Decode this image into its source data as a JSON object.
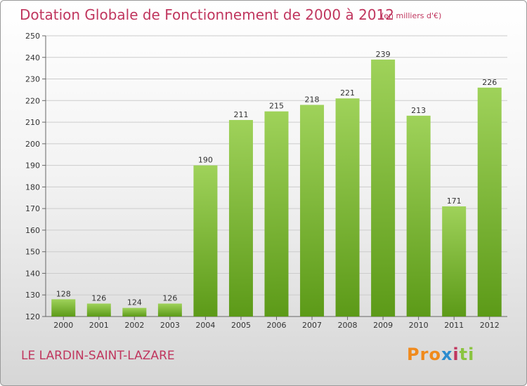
{
  "header": {
    "title": "Dotation Globale de Fonctionnement de 2000 à 2012",
    "unit": "(en milliers d'€)"
  },
  "footer": {
    "commune": "LE LARDIN-SAINT-LAZARE",
    "logo_letters": [
      "P",
      "r",
      "o",
      "x",
      "i",
      "t",
      "i"
    ]
  },
  "colors": {
    "title": "#c0365e",
    "bar_top": "#9fd25a",
    "bar_bottom": "#5c9a18",
    "grid": "#cccccc",
    "logo": [
      "#f08a1c",
      "#f08a1c",
      "#f08a1c",
      "#2b8ccf",
      "#c0365e",
      "#8ac43f",
      "#8ac43f"
    ]
  },
  "chart_data": {
    "type": "bar",
    "categories": [
      "2000",
      "2001",
      "2002",
      "2003",
      "2004",
      "2005",
      "2006",
      "2007",
      "2008",
      "2009",
      "2010",
      "2011",
      "2012"
    ],
    "values": [
      128,
      126,
      124,
      126,
      190,
      211,
      215,
      218,
      221,
      239,
      213,
      171,
      226
    ],
    "ylim": [
      120,
      250
    ],
    "yticks": [
      120,
      130,
      140,
      150,
      160,
      170,
      180,
      190,
      200,
      210,
      220,
      230,
      240,
      250
    ],
    "grid": true,
    "xlabel": "",
    "ylabel": ""
  }
}
